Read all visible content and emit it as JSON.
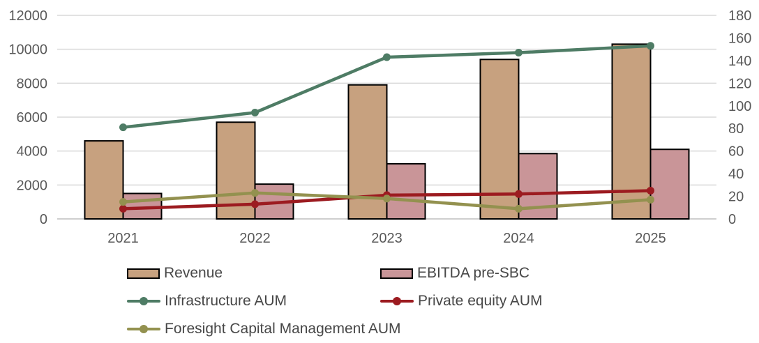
{
  "chart_data": {
    "type": "bar",
    "subtype": "combo-bar-line-dual-axis",
    "title": "",
    "categories": [
      "2021",
      "2022",
      "2023",
      "2024",
      "2025"
    ],
    "bar_series": [
      {
        "name": "Revenue",
        "axis": "left",
        "color": "#C7A17F",
        "border_color": "#000000",
        "values": [
          4600,
          5700,
          7900,
          9400,
          10300
        ]
      },
      {
        "name": "EBITDA pre-SBC",
        "axis": "left",
        "color": "#C99598",
        "border_color": "#000000",
        "values": [
          1500,
          2050,
          3250,
          3850,
          4100
        ]
      }
    ],
    "line_series": [
      {
        "name": "Infrastructure AUM",
        "axis": "right",
        "color": "#4E7C65",
        "values": [
          81,
          94,
          143,
          147,
          153
        ]
      },
      {
        "name": "Private equity AUM",
        "axis": "right",
        "color": "#9C1B20",
        "values": [
          9,
          13,
          21,
          22,
          25
        ]
      },
      {
        "name": "Foresight Capital Management AUM",
        "axis": "right",
        "color": "#93914F",
        "values": [
          15,
          23,
          18,
          9,
          17
        ]
      }
    ],
    "left_axis": {
      "min": 0,
      "max": 12000,
      "step": 2000,
      "tick_labels": [
        "0",
        "2000",
        "4000",
        "6000",
        "8000",
        "10000",
        "12000"
      ]
    },
    "right_axis": {
      "min": 0,
      "max": 180,
      "step": 20,
      "tick_labels": [
        "0",
        "20",
        "40",
        "60",
        "80",
        "100",
        "120",
        "140",
        "160",
        "180"
      ]
    },
    "xlabel": "",
    "ylabel": "",
    "grid": true,
    "gridline_color": "#D9D9D9",
    "axis_line_color": "#BFBFBF",
    "tick_text_color": "#595959",
    "legend_position": "bottom",
    "legend_text_color": "#474747"
  }
}
